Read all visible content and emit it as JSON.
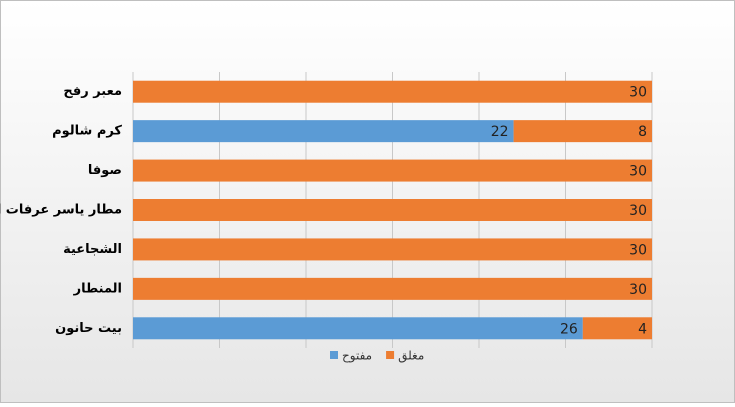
{
  "chart_data": {
    "type": "stacked-barh",
    "categories": [
      "معبر رفح",
      "كرم شالوم",
      "صوفا",
      "مطار ياسر عرفات الدولي",
      "الشجاعية",
      "المنطار",
      "بيت حانون"
    ],
    "series": [
      {
        "name": "مفتوح",
        "color": "#5b9bd5",
        "values": [
          0,
          22,
          0,
          0,
          0,
          0,
          26
        ]
      },
      {
        "name": "مغلق",
        "color": "#ed7d31",
        "values": [
          30,
          8,
          30,
          30,
          30,
          30,
          4
        ]
      }
    ],
    "xlim": [
      0,
      30
    ],
    "xticks": [
      0,
      5,
      10,
      15,
      20,
      25,
      30
    ],
    "grid": true,
    "legend": "bottom"
  }
}
